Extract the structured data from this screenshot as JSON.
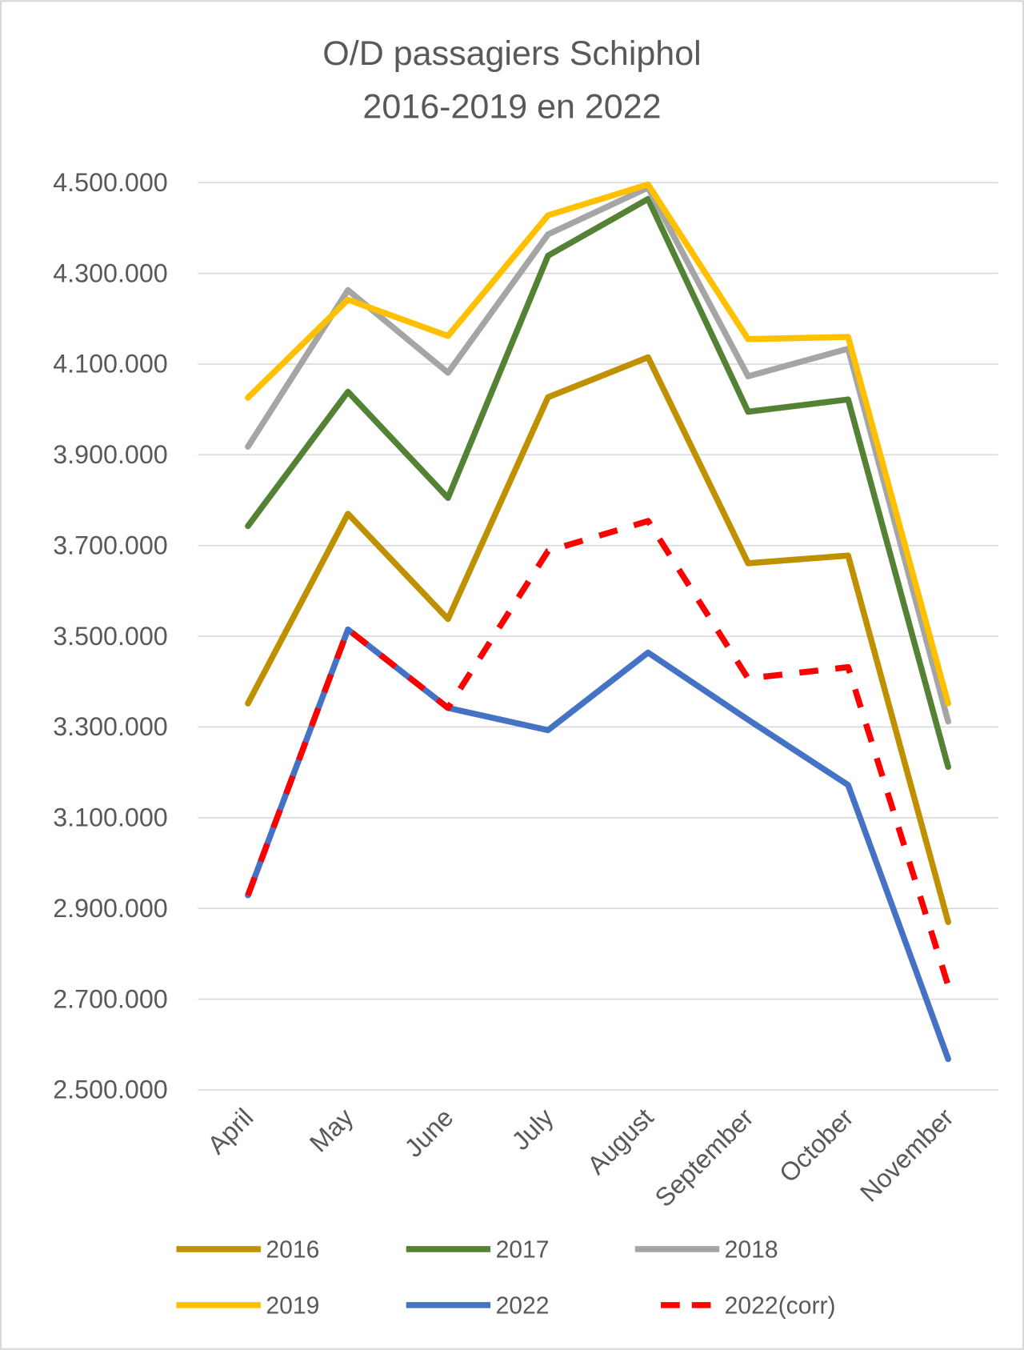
{
  "chart_data": {
    "type": "line",
    "title": [
      "O/D passagiers Schiphol",
      "2016-2019 en 2022"
    ],
    "xlabel": "",
    "ylabel": "",
    "categories": [
      "April",
      "May",
      "June",
      "July",
      "August",
      "September",
      "October",
      "November"
    ],
    "ylim": [
      2500000,
      4500000
    ],
    "yticks": [
      2500000,
      2700000,
      2900000,
      3100000,
      3300000,
      3500000,
      3700000,
      3900000,
      4100000,
      4300000,
      4500000
    ],
    "ytick_labels": [
      "2.500.000",
      "2.700.000",
      "2.900.000",
      "3.100.000",
      "3.300.000",
      "3.500.000",
      "3.700.000",
      "3.900.000",
      "4.100.000",
      "4.300.000",
      "4.500.000"
    ],
    "grid": true,
    "legend_position": "bottom",
    "series": [
      {
        "name": "2016",
        "color": "#BF9000",
        "dashed": false,
        "values": [
          3352000,
          3770000,
          3538000,
          4027000,
          4115000,
          3661000,
          3678000,
          2870000
        ]
      },
      {
        "name": "2017",
        "color": "#548235",
        "dashed": false,
        "values": [
          3743000,
          4039000,
          3805000,
          4339000,
          4464000,
          3995000,
          4022000,
          3212000
        ]
      },
      {
        "name": "2018",
        "color": "#A5A5A5",
        "dashed": false,
        "values": [
          3918000,
          4263000,
          4081000,
          4386000,
          4489000,
          4073000,
          4134000,
          3312000
        ]
      },
      {
        "name": "2019",
        "color": "#FFC000",
        "dashed": false,
        "values": [
          4026000,
          4242000,
          4162000,
          4428000,
          4496000,
          4155000,
          4160000,
          3352000
        ]
      },
      {
        "name": "2022",
        "color": "#4472C4",
        "dashed": false,
        "values": [
          2929000,
          3515000,
          3342000,
          3293000,
          3464000,
          3316000,
          3172000,
          2568000
        ]
      },
      {
        "name": "2022(corr)",
        "color": "#FF0000",
        "dashed": true,
        "values": [
          2929000,
          3515000,
          3342000,
          3688000,
          3754000,
          3407000,
          3432000,
          2730000
        ]
      }
    ]
  }
}
